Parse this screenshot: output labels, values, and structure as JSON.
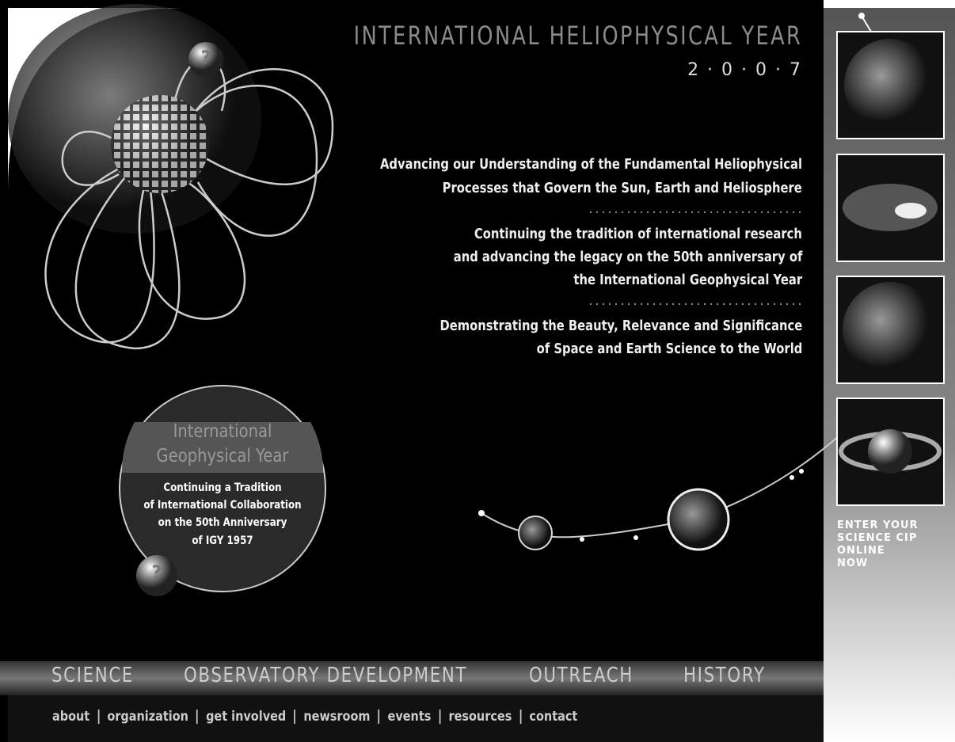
{
  "header": {
    "title": "INTERNATIONAL HELIOPHYSICAL YEAR",
    "year": "2 · 0 · 0 · 7"
  },
  "taglines": [
    [
      "Advancing our Understanding of the Fundamental Heliophysical",
      "Processes that Govern the Sun, Earth and Heliosphere"
    ],
    [
      "Continuing the tradition of international research",
      "and advancing the legacy on the 50th anniversary of",
      "the International Geophysical Year"
    ],
    [
      "Demonstrating the Beauty, Relevance and Significance",
      "of Space and Earth Science to the World"
    ]
  ],
  "igy": {
    "title": [
      "International",
      "Geophysical Year"
    ],
    "text": [
      "Continuing a Tradition",
      "of International Collaboration",
      "on the 50th Anniversary",
      "of IGY 1957"
    ]
  },
  "help_icon": "?",
  "sidebar": {
    "cta": [
      "ENTER YOUR",
      "SCIENCE CIP",
      "ONLINE",
      "NOW"
    ]
  },
  "main_nav": [
    "SCIENCE",
    "OBSERVATORY DEVELOPMENT",
    "OUTREACH",
    "HISTORY"
  ],
  "sub_nav": [
    "about",
    "organization",
    "get involved",
    "newsroom",
    "events",
    "resources",
    "contact"
  ]
}
